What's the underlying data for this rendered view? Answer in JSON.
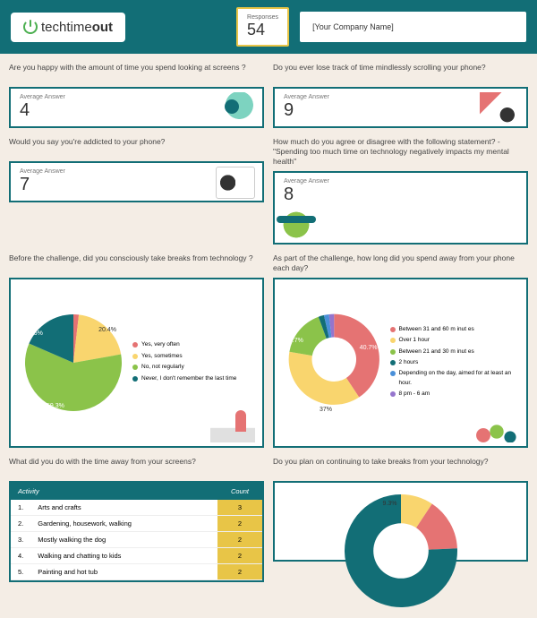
{
  "header": {
    "logo": "techtime",
    "logo_suffix": "out",
    "responses_label": "Responses",
    "responses_value": "54",
    "company": "[Your Company Name]"
  },
  "colors": {
    "brand": "#126e76",
    "accent": "#e8c547",
    "red": "#e57373",
    "green": "#8bc34a",
    "teal": "#126e76",
    "yellow": "#f9d56e",
    "blue": "#4a90d9"
  },
  "questions": [
    {
      "text": "Are you happy with the amount of time you spend looking at screens ?",
      "label": "Average Answer",
      "value": "4"
    },
    {
      "text": "Do you ever lose track of time mindlessly scrolling your phone?",
      "label": "Average Answer",
      "value": "9"
    },
    {
      "text": "Would you say you're addicted to your phone?",
      "label": "Average Answer",
      "value": "7"
    },
    {
      "text": "How much do you agree or disagree with the following statement? - \"Spending too much time on technology negatively impacts my mental health\"",
      "label": "Average Answer",
      "value": "8"
    }
  ],
  "pie1": {
    "title": "Before the challenge, did you consciously take breaks from technology ?",
    "type": "pie",
    "slices": [
      {
        "label": "Yes, very often",
        "value": 1.8,
        "color": "#e57373"
      },
      {
        "label": "Yes, sometimes",
        "value": 20.4,
        "color": "#f9d56e",
        "show": "20.4%"
      },
      {
        "label": "No, not regularly",
        "value": 59.3,
        "color": "#8bc34a",
        "show": "59.3%"
      },
      {
        "label": "Never, I don't remember the last time",
        "value": 18.5,
        "color": "#126e76",
        "show": "18.5%"
      }
    ]
  },
  "donut1": {
    "title": "As part of the challenge, how long did you spend away from your phone each day?",
    "type": "donut",
    "slices": [
      {
        "label": "Between 31 and 60 m inut es",
        "value": 40.7,
        "color": "#e57373",
        "show": "40.7%"
      },
      {
        "label": "Over 1 hour",
        "value": 37.0,
        "color": "#f9d56e",
        "show": "37%"
      },
      {
        "label": "Between 21 and 30 m inut es",
        "value": 16.7,
        "color": "#8bc34a",
        "show": "16.7%"
      },
      {
        "label": "2 hours",
        "value": 2.0,
        "color": "#126e76"
      },
      {
        "label": "Depending on the day, aimed for at least an hour.",
        "value": 1.8,
        "color": "#4a90d9"
      },
      {
        "label": "8 pm - 6 am",
        "value": 1.8,
        "color": "#9575cd"
      }
    ]
  },
  "table": {
    "title": "What did you do with the time away from your screens?",
    "col1": "Activity",
    "col2": "Count",
    "rows": [
      {
        "n": "1.",
        "activity": "Arts and crafts",
        "count": "3"
      },
      {
        "n": "2.",
        "activity": "Gardening, housework, walking",
        "count": "2"
      },
      {
        "n": "3.",
        "activity": "Mostly walking the dog",
        "count": "2"
      },
      {
        "n": "4.",
        "activity": "Walking and chatting to kids",
        "count": "2"
      },
      {
        "n": "5.",
        "activity": "Painting and hot tub",
        "count": "2"
      }
    ]
  },
  "donut2": {
    "title": "Do you plan on continuing to take breaks from your technology?",
    "type": "donut",
    "slices": [
      {
        "value": 9.3,
        "color": "#f9d56e",
        "show": "9.3%"
      },
      {
        "value": 15,
        "color": "#e57373"
      },
      {
        "value": 75.7,
        "color": "#126e76"
      }
    ]
  }
}
